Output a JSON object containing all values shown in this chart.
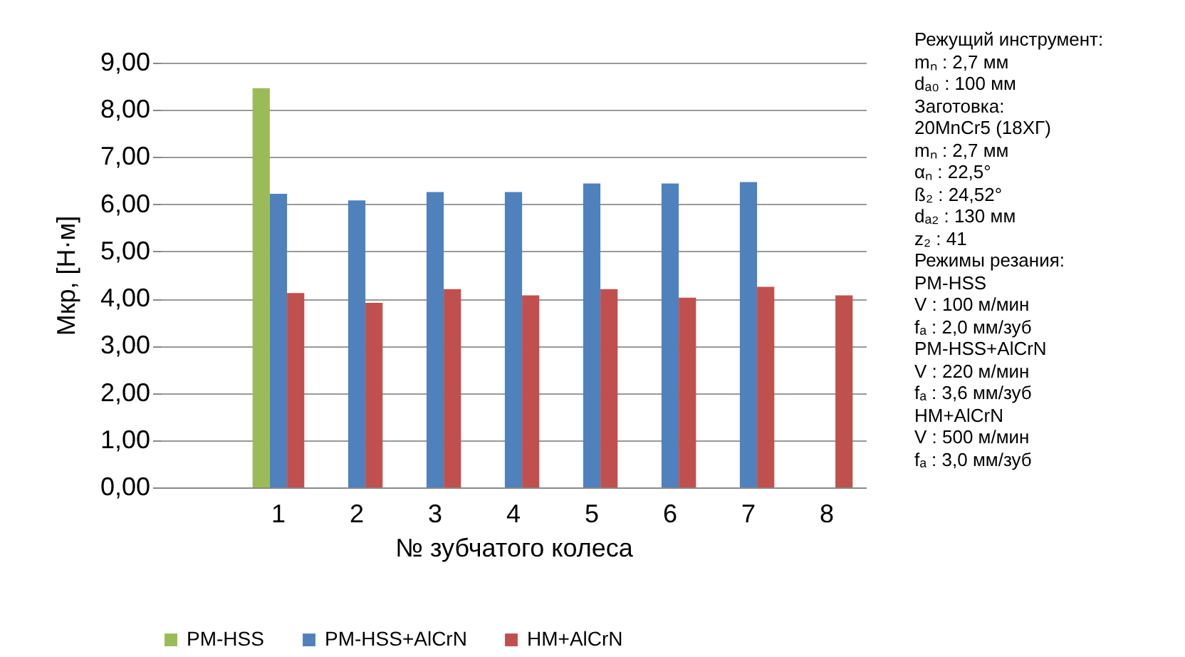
{
  "chart_data": {
    "type": "bar",
    "xlabel": "№ зубчатого колеса",
    "ylabel": "Мкр, [Н·м]",
    "categories": [
      null,
      "1",
      "2",
      "3",
      "4",
      "5",
      "6",
      "7",
      "8"
    ],
    "series": [
      {
        "name": "PM-HSS",
        "color": "#9bbb59",
        "values": [
          null,
          8.46,
          null,
          null,
          null,
          null,
          null,
          null,
          null
        ]
      },
      {
        "name": "PM-HSS+AlCrN",
        "color": "#4f81bd",
        "values": [
          null,
          6.22,
          6.08,
          6.26,
          6.26,
          6.44,
          6.44,
          6.47,
          null
        ]
      },
      {
        "name": "HM+AlCrN",
        "color": "#c0504d",
        "values": [
          null,
          4.12,
          3.91,
          4.2,
          4.07,
          4.2,
          4.02,
          4.25,
          4.07
        ]
      }
    ],
    "ylim": [
      0,
      9
    ],
    "yticks": [
      {
        "value": 0,
        "label": "0,00"
      },
      {
        "value": 1,
        "label": "1,00"
      },
      {
        "value": 2,
        "label": "2,00"
      },
      {
        "value": 3,
        "label": "3,00"
      },
      {
        "value": 4,
        "label": "4,00"
      },
      {
        "value": 5,
        "label": "5,00"
      },
      {
        "value": 6,
        "label": "6,00"
      },
      {
        "value": 7,
        "label": "7,00"
      },
      {
        "value": 8,
        "label": "8,00"
      },
      {
        "value": 9,
        "label": "9,00"
      }
    ],
    "grid": "y",
    "legend": "bottom",
    "annotations": [
      "Режущий инструмент:",
      "mₙ : 2,7 мм",
      "dₐ₀ : 100 мм",
      "Заготовка:",
      "20MnCr5 (18ХГ)",
      "mₙ : 2,7 мм",
      "αₙ : 22,5°",
      "ß₂ : 24,52°",
      "dₐ₂ : 130 мм",
      "z₂ : 41",
      "Режимы резания:",
      "PM-HSS",
      "V : 100 м/мин",
      "fₐ : 2,0 мм/зуб",
      "PM-HSS+AlCrN",
      "V : 220 м/мин",
      "fₐ : 3,6 мм/зуб",
      "HM+AlCrN",
      "V : 500 м/мин",
      "fₐ : 3,0 мм/зуб"
    ]
  }
}
